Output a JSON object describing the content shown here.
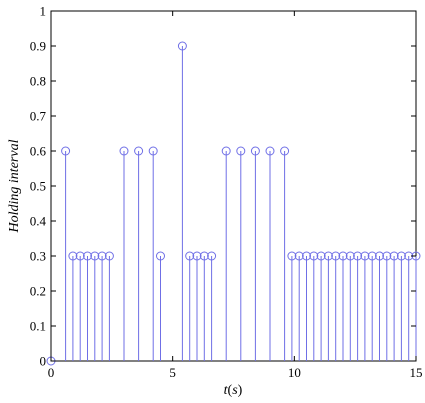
{
  "chart_data": {
    "type": "stem",
    "title": "",
    "xlabel_parts": [
      "t",
      "(",
      "s",
      ")"
    ],
    "ylabel": "Holding interval",
    "xlim": [
      0,
      15
    ],
    "ylim": [
      0,
      1
    ],
    "xticks": [
      0,
      5,
      10,
      15
    ],
    "yticks": [
      0,
      0.1,
      0.2,
      0.3,
      0.4,
      0.5,
      0.6,
      0.7,
      0.8,
      0.9,
      1
    ],
    "ytick_labels": [
      "0",
      "0.1",
      "0.2",
      "0.3",
      "0.4",
      "0.5",
      "0.6",
      "0.7",
      "0.8",
      "0.9",
      "1"
    ],
    "grid": false,
    "color": "#6f6fe6",
    "x": [
      0,
      0.6,
      0.9,
      1.2,
      1.5,
      1.8,
      2.1,
      2.4,
      3.0,
      3.6,
      4.2,
      4.5,
      5.4,
      5.7,
      6.0,
      6.3,
      6.6,
      7.2,
      7.8,
      8.4,
      9.0,
      9.6,
      9.9,
      10.2,
      10.5,
      10.8,
      11.1,
      11.4,
      11.7,
      12.0,
      12.3,
      12.6,
      12.9,
      13.2,
      13.5,
      13.8,
      14.1,
      14.4,
      14.7,
      15.0
    ],
    "y": [
      0,
      0.6,
      0.3,
      0.3,
      0.3,
      0.3,
      0.3,
      0.3,
      0.6,
      0.6,
      0.6,
      0.3,
      0.9,
      0.3,
      0.3,
      0.3,
      0.3,
      0.6,
      0.6,
      0.6,
      0.6,
      0.6,
      0.3,
      0.3,
      0.3,
      0.3,
      0.3,
      0.3,
      0.3,
      0.3,
      0.3,
      0.3,
      0.3,
      0.3,
      0.3,
      0.3,
      0.3,
      0.3,
      0.3,
      0.3
    ]
  }
}
